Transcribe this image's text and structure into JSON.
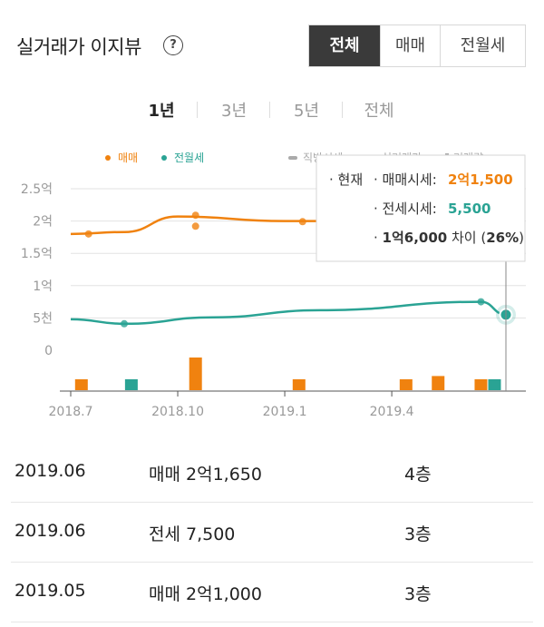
{
  "header": {
    "title": "실거래가 이지뷰",
    "help_icon": "question-circle-icon",
    "help_glyph": "?",
    "tabs": [
      {
        "label": "전체",
        "active": true
      },
      {
        "label": "매매",
        "active": false
      },
      {
        "label": "전월세",
        "active": false
      }
    ]
  },
  "periods": [
    {
      "label": "1년",
      "active": true
    },
    {
      "label": "3년",
      "active": false
    },
    {
      "label": "5년",
      "active": false
    },
    {
      "label": "전체",
      "active": false
    }
  ],
  "legend": {
    "sale": "매매",
    "rent": "전월세",
    "market": "직방시세",
    "real": "실거래가",
    "volume": "거래량"
  },
  "colors": {
    "sale": "#f0820f",
    "rent": "#2aa394",
    "grid": "#e2e2e2",
    "axis_text": "#999999"
  },
  "tooltip": {
    "current": "· 현재",
    "sale_label": "· 매매시세:",
    "sale_value": "2억1,500",
    "rent_label": "· 전세시세:",
    "rent_value": "5,500",
    "diff_prefix": "· ",
    "diff_value": "1억6,000",
    "diff_mid": " 차이 (",
    "diff_pct": "26%",
    "diff_end": ")"
  },
  "chart_data": {
    "type": "line",
    "y_tick_labels": [
      "2.5억",
      "2억",
      "1.5억",
      "1억",
      "5천",
      "0"
    ],
    "y_ticks": [
      25000,
      20000,
      15000,
      10000,
      5000,
      0
    ],
    "ylim": [
      0,
      25000
    ],
    "x_tick_labels": [
      "2018.7",
      "2018.10",
      "2019.1",
      "2019.4"
    ],
    "x_ticks": [
      0,
      3,
      6,
      9
    ],
    "xlim": [
      0,
      12.2
    ],
    "series": [
      {
        "name": "매매",
        "line": [
          [
            0,
            18000
          ],
          [
            1.5,
            18300
          ],
          [
            3,
            20700
          ],
          [
            6,
            20000
          ],
          [
            9,
            20000
          ],
          [
            10.6,
            21000
          ],
          [
            12.2,
            21500
          ]
        ],
        "points": [
          [
            0.5,
            18000
          ],
          [
            3.5,
            20900
          ],
          [
            3.5,
            19200
          ],
          [
            6.5,
            19900
          ],
          [
            9.8,
            20300
          ],
          [
            12.2,
            21500
          ]
        ]
      },
      {
        "name": "전월세",
        "line": [
          [
            0,
            4800
          ],
          [
            1.5,
            4100
          ],
          [
            4,
            5100
          ],
          [
            7,
            6200
          ],
          [
            11.5,
            7500
          ],
          [
            12.2,
            5500
          ]
        ],
        "points": [
          [
            1.5,
            4100
          ],
          [
            11.5,
            7500
          ],
          [
            12.2,
            5500
          ]
        ]
      }
    ],
    "volume_bars": [
      {
        "x": 0.3,
        "sale": 1,
        "rent": 0
      },
      {
        "x": 1.7,
        "sale": 0,
        "rent": 1
      },
      {
        "x": 3.5,
        "sale": 3,
        "rent": 0
      },
      {
        "x": 6.4,
        "sale": 1,
        "rent": 0
      },
      {
        "x": 9.4,
        "sale": 1,
        "rent": 0
      },
      {
        "x": 10.3,
        "sale": 1.3,
        "rent": 0
      },
      {
        "x": 11.5,
        "sale": 1,
        "rent": 1
      }
    ]
  },
  "transactions": [
    {
      "date": "2019.06",
      "deal": "매매 2억1,650",
      "floor": "4층"
    },
    {
      "date": "2019.06",
      "deal": "전세 7,500",
      "floor": "3층"
    },
    {
      "date": "2019.05",
      "deal": "매매 2억1,000",
      "floor": "3층"
    }
  ]
}
